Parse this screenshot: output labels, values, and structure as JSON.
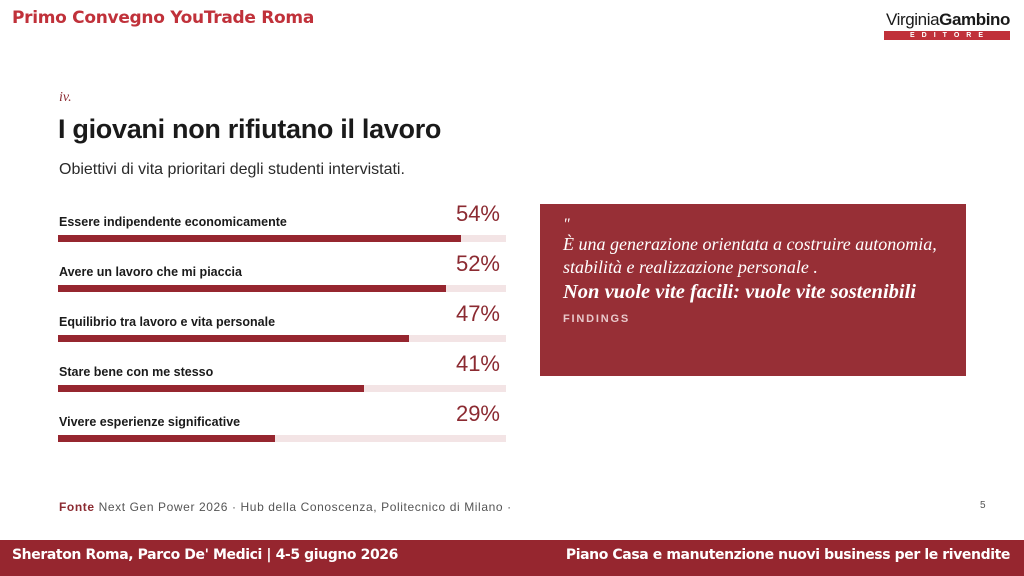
{
  "header": {
    "title": "Primo Convegno YouTrade Roma",
    "logo": {
      "name_light": "Virginia",
      "name_bold": "Gambino",
      "subtitle": "EDITORE"
    }
  },
  "slide": {
    "section_number": "iv.",
    "title": "I giovani non rifiutano il lavoro",
    "subtitle": "Obiettivi di vita prioritari degli studenti intervistati."
  },
  "chart_data": {
    "type": "bar",
    "orientation": "horizontal",
    "categories": [
      "Essere indipendente economicamente",
      "Avere un lavoro che mi piaccia",
      "Equilibrio tra lavoro e vita personale",
      "Stare bene con me stesso",
      "Vivere esperienze significative"
    ],
    "values": [
      54,
      52,
      47,
      41,
      29
    ],
    "value_labels": [
      "54%",
      "52%",
      "47%",
      "41%",
      "29%"
    ],
    "unit": "%",
    "xlim": [
      0,
      60
    ],
    "grid": false,
    "bar_color": "#96262f",
    "track_color": "#f3e4e5"
  },
  "quote": {
    "mark": "\"",
    "text": "È una generazione orientata a costruire autonomia, stabilità e realizzazione personale .",
    "emphasis": "Non vuole vite facili: vuole vite sostenibili",
    "tag": "FINDINGS"
  },
  "source": {
    "label": "Fonte",
    "text": "Next Gen Power 2026 · Hub della Conoscenza, Politecnico di Milano ·"
  },
  "page_number": "5",
  "footer": {
    "left": "Sheraton Roma, Parco De' Medici | 4-5 giugno 2026",
    "right": "Piano Casa e manutenzione nuovi business per le rivendite"
  },
  "colors": {
    "brand_red": "#c0313a",
    "dark_red": "#96262f",
    "quote_bg": "#972f36"
  }
}
